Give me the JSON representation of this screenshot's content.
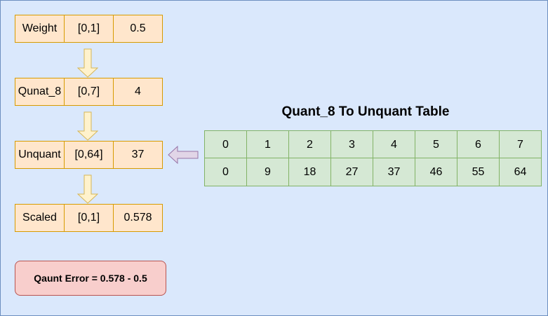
{
  "rows": [
    {
      "name": "Weight",
      "range": "[0,1]",
      "value": "0.5"
    },
    {
      "name": "Qunat_8",
      "range": "[0,7]",
      "value": "4"
    },
    {
      "name": "Unquant",
      "range": "[0,64]",
      "value": "37"
    },
    {
      "name": "Scaled",
      "range": "[0,1]",
      "value": "0.578"
    }
  ],
  "table": {
    "title": "Quant_8 To Unquant Table",
    "quant": [
      "0",
      "1",
      "2",
      "3",
      "4",
      "5",
      "6",
      "7"
    ],
    "unquant": [
      "0",
      "9",
      "18",
      "27",
      "37",
      "46",
      "55",
      "64"
    ]
  },
  "error": "Qaunt Error = 0.578 - 0.5",
  "colors": {
    "background": "#dae8fc",
    "row_fill": "#ffe6cc",
    "row_border": "#d79b00",
    "table_fill": "#d5e8d4",
    "table_border": "#82b366",
    "error_fill": "#f8cecc",
    "error_border": "#b85450",
    "down_arrow_fill": "#fff2cc",
    "down_arrow_stroke": "#d6b656",
    "left_arrow_fill": "#e1d5e7",
    "left_arrow_stroke": "#9673a6"
  }
}
